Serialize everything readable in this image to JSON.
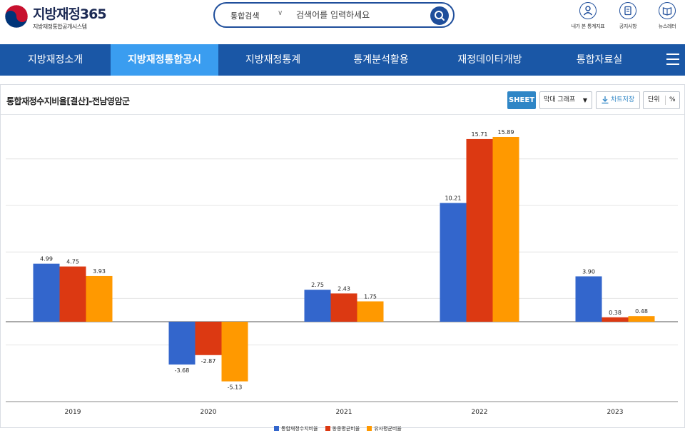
{
  "header": {
    "logo_title": "지방재정365",
    "logo_subtitle": "지방재정통합공개시스템",
    "search": {
      "category": "통합검색",
      "placeholder": "검색어를 입력하세요"
    },
    "utilities": [
      {
        "label": "내가 본 통계지표",
        "icon": "person-icon"
      },
      {
        "label": "공지사항",
        "icon": "notice-icon"
      },
      {
        "label": "뉴스레터",
        "icon": "newsletter-icon"
      }
    ]
  },
  "nav": {
    "items": [
      {
        "label": "지방재정소개",
        "active": false
      },
      {
        "label": "지방재정통합공시",
        "active": true
      },
      {
        "label": "지방재정통계",
        "active": false
      },
      {
        "label": "통계분석활용",
        "active": false
      },
      {
        "label": "재정데이터개방",
        "active": false
      },
      {
        "label": "통합자료실",
        "active": false
      }
    ]
  },
  "panel": {
    "title": "통합재정수지비율[결산]-전남영암군",
    "sheet_label": "SHEET",
    "chart_type_label": "막대 그래프",
    "save_label": "차트저장",
    "unit_label": "단위",
    "unit_value": "%"
  },
  "colors": {
    "blue": "#3366cc",
    "red": "#dc3912",
    "orange": "#ff9900",
    "nav": "#1a57a6",
    "nav_active": "#3a9df0"
  },
  "chart_data": {
    "type": "bar",
    "categories": [
      "2019",
      "2020",
      "2021",
      "2022",
      "2023"
    ],
    "series": [
      {
        "name": "통합재정수지비율",
        "values": [
          4.99,
          -3.68,
          2.75,
          10.21,
          3.9
        ],
        "labels": [
          "4.99",
          "-3.68",
          "2.75",
          "10.21",
          "3.90"
        ]
      },
      {
        "name": "동종평균비율",
        "values": [
          4.75,
          -2.87,
          2.43,
          15.71,
          0.38
        ],
        "labels": [
          "4.75",
          "-2.87",
          "2.43",
          "15.71",
          "0.38"
        ]
      },
      {
        "name": "유사평균비율",
        "values": [
          3.93,
          -5.13,
          1.75,
          15.89,
          0.48
        ],
        "labels": [
          "3.93",
          "-5.13",
          "1.75",
          "15.89",
          "0.48"
        ]
      }
    ],
    "ylim": [
      -6,
      18
    ],
    "grid": true,
    "legend_position": "bottom"
  }
}
